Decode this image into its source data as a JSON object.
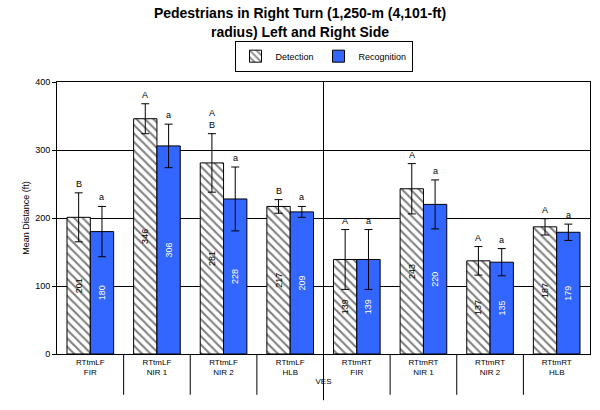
{
  "chart_data": {
    "type": "bar",
    "title": "Pedestrians in Right Turn (1,250-m (4,101-ft)\nradius) Left and Right Side",
    "x_label": "VES",
    "y_label": "Mean Distance (ft)",
    "categories": [
      "RTtmLF",
      "RTtmLF",
      "RTtmLF",
      "RTtmLF",
      "RTtmRT",
      "RTtmRT",
      "RTtmRT",
      "RTtmRT"
    ],
    "category_groups": [
      "FIR",
      "NIR 1",
      "NIR 2",
      "HLB",
      "FIR",
      "NIR 1",
      "NIR 2",
      "HLB"
    ],
    "series": [
      {
        "name": "Detection",
        "color": "#808080",
        "marker": "hatch",
        "values": [
          201,
          346,
          281,
          217,
          139,
          243,
          137,
          187
        ],
        "errors": [
          36,
          22,
          43,
          10,
          44,
          37,
          21,
          12
        ],
        "significance": [
          "B",
          "A",
          "A\nB",
          "B",
          "A",
          "A",
          "A",
          "A"
        ]
      },
      {
        "name": "Recognition",
        "color": "#3366ff",
        "marker": "solid",
        "values": [
          180,
          306,
          228,
          209,
          139,
          220,
          135,
          179
        ],
        "errors": [
          37,
          32,
          47,
          8,
          44,
          36,
          20,
          12
        ],
        "significance": [
          "a",
          "a",
          "a",
          "a",
          "a",
          "a",
          "a",
          "a"
        ]
      }
    ],
    "ylim": [
      0,
      400
    ],
    "yticks": [
      0,
      100,
      200,
      300,
      400
    ],
    "grid": true,
    "legend": "top",
    "data_labels": true
  }
}
